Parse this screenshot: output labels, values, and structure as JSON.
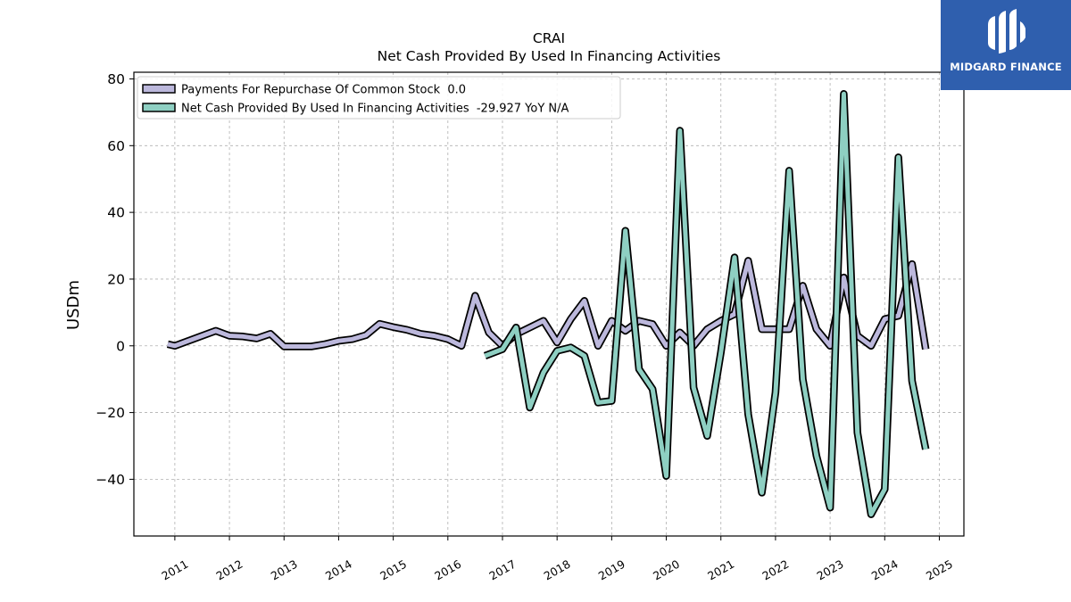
{
  "brand": {
    "name": "MIDGARD FINANCE",
    "color": "#2f5fae"
  },
  "chart_data": {
    "type": "line",
    "title": "CRAI",
    "subtitle": "Net Cash Provided By Used In Financing Activities",
    "xlabel": "",
    "ylabel": "USDm",
    "xlim": [
      2010.25,
      2025.45
    ],
    "ylim": [
      -57,
      82
    ],
    "yticks": [
      -40,
      -20,
      0,
      20,
      40,
      60,
      80
    ],
    "yticklabels": [
      "−40",
      "−20",
      "0",
      "20",
      "40",
      "60",
      "80"
    ],
    "xticks": [
      "2011",
      "2012",
      "2013",
      "2014",
      "2015",
      "2016",
      "2017",
      "2018",
      "2019",
      "2020",
      "2021",
      "2022",
      "2023",
      "2024",
      "2025"
    ],
    "grid": true,
    "legend_position": "top-left",
    "series": [
      {
        "name": "Payments For Repurchase Of Common Stock",
        "legend_label": "Payments For Repurchase Of Common Stock  0.0",
        "color": "#bcb8dc",
        "x": [
          2010.87,
          2011.0,
          2011.5,
          2011.75,
          2012.0,
          2012.25,
          2012.5,
          2012.75,
          2013.0,
          2013.25,
          2013.5,
          2013.75,
          2014.0,
          2014.25,
          2014.5,
          2014.75,
          2015.0,
          2015.25,
          2015.5,
          2015.75,
          2016.0,
          2016.25,
          2016.5,
          2016.75,
          2017.0,
          2017.25,
          2017.5,
          2017.75,
          2018.0,
          2018.25,
          2018.5,
          2018.75,
          2019.0,
          2019.25,
          2019.5,
          2019.75,
          2020.0,
          2020.25,
          2020.5,
          2020.75,
          2021.0,
          2021.25,
          2021.5,
          2021.75,
          2022.0,
          2022.25,
          2022.5,
          2022.75,
          2023.0,
          2023.25,
          2023.5,
          2023.75,
          2024.0,
          2024.25,
          2024.5,
          2024.75
        ],
        "values": [
          0.5,
          0.0,
          3.0,
          4.5,
          3.0,
          2.8,
          2.2,
          3.6,
          -0.2,
          -0.2,
          -0.2,
          0.5,
          1.5,
          2.0,
          3.2,
          6.6,
          5.6,
          4.8,
          3.6,
          3.0,
          2.0,
          0.0,
          15.0,
          4.0,
          0.0,
          3.5,
          5.5,
          7.5,
          1.0,
          8.0,
          13.5,
          0.0,
          7.5,
          4.5,
          7.5,
          6.5,
          0.0,
          4.0,
          0.0,
          5.0,
          7.5,
          9.5,
          25.5,
          5.0,
          5.0,
          5.0,
          18.0,
          5.0,
          0.0,
          20.5,
          3.0,
          0.0,
          8.0,
          9.0,
          24.5,
          -1.0
        ]
      },
      {
        "name": "Net Cash Provided By Used In Financing Activities",
        "legend_label": "Net Cash Provided By Used In Financing Activities  -29.927 YoY N/A",
        "color": "#8ecfc2",
        "x": [
          2016.68,
          2017.0,
          2017.25,
          2017.5,
          2017.75,
          2018.0,
          2018.25,
          2018.5,
          2018.75,
          2019.0,
          2019.25,
          2019.5,
          2019.75,
          2020.0,
          2020.25,
          2020.5,
          2020.75,
          2021.0,
          2021.25,
          2021.5,
          2021.75,
          2022.0,
          2022.25,
          2022.5,
          2022.75,
          2023.0,
          2023.25,
          2023.5,
          2023.75,
          2024.0,
          2024.25,
          2024.5,
          2024.75
        ],
        "values": [
          -3.0,
          -1.0,
          5.5,
          -18.5,
          -8.0,
          -1.5,
          -0.5,
          -3.0,
          -17.0,
          -16.5,
          34.5,
          -7.0,
          -13.0,
          -39.0,
          64.5,
          -12.5,
          -27.0,
          -2.0,
          26.5,
          -20.5,
          -44.0,
          -14.0,
          52.5,
          -10.0,
          -33.0,
          -48.5,
          75.5,
          -26.0,
          -50.5,
          -43.0,
          56.5,
          -10.5,
          -31.0
        ]
      }
    ]
  }
}
